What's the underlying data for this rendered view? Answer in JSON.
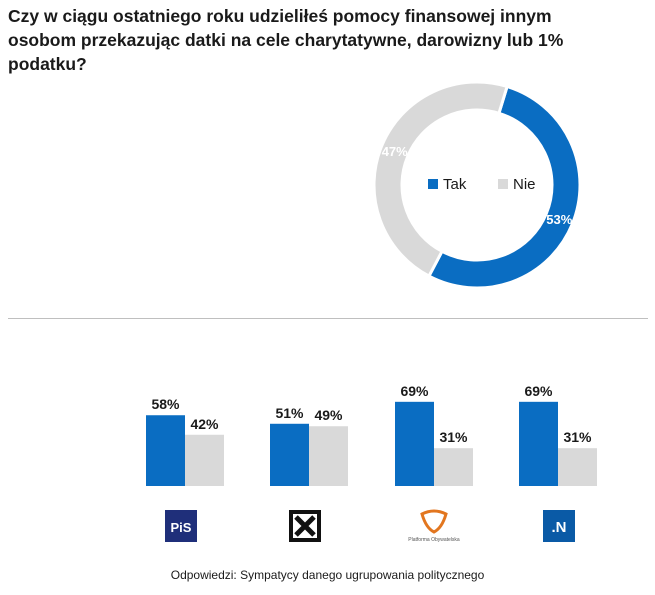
{
  "question": "Czy w ciągu ostatniego roku udzieliłeś pomocy finansowej innym osobom przekazując datki na cele charytatywne, darowizny lub 1% podatku?",
  "colors": {
    "tak": "#0a6dc2",
    "nie": "#d9d9d9",
    "label_on_tak": "#ffffff",
    "label_on_nie": "#ffffff"
  },
  "chart_data": [
    {
      "type": "pie",
      "variant": "donut",
      "title": "Czy w ciągu ostatniego roku udzieliłeś pomocy finansowej innym osobom przekazując datki na cele charytatywne, darowizny lub 1% podatku?",
      "categories": [
        "Tak",
        "Nie"
      ],
      "values": [
        53,
        47
      ],
      "labels": [
        "53%",
        "47%"
      ],
      "legend": [
        "Tak",
        "Nie"
      ],
      "legend_position": "center"
    },
    {
      "type": "bar",
      "categories": [
        "PiS",
        "Kukiz'15",
        "Platforma Obywatelska",
        ".N"
      ],
      "series": [
        {
          "name": "Tak",
          "values": [
            58,
            51,
            69,
            69
          ],
          "labels": [
            "58%",
            "51%",
            "69%",
            "69%"
          ]
        },
        {
          "name": "Nie",
          "values": [
            42,
            49,
            31,
            31
          ],
          "labels": [
            "42%",
            "49%",
            "31%",
            "31%"
          ]
        }
      ],
      "ylim": [
        0,
        100
      ],
      "grid": false
    }
  ],
  "logos": {
    "pis": {
      "text": "PiS",
      "bg": "#1f2f7a"
    },
    "kukiz": {
      "text": "K",
      "bg": "#111111"
    },
    "po": {
      "text": "Platforma Obywatelska",
      "color": "#e2761f"
    },
    "n": {
      "text": ".N",
      "bg": "#0a5aa6"
    }
  },
  "footnote": "Odpowiedzi: Sympatycy danego ugrupowania politycznego"
}
